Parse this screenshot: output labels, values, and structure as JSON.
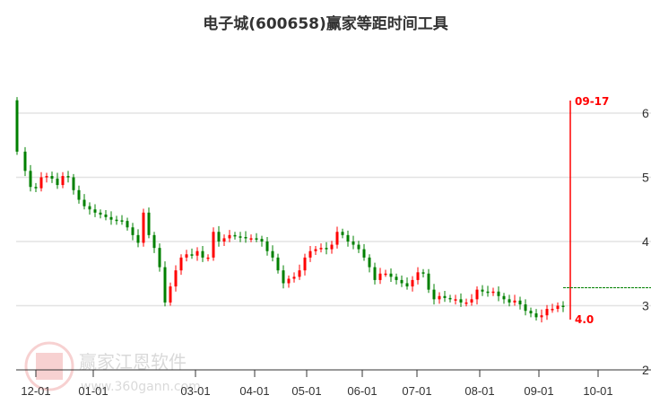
{
  "chart_data": {
    "type": "candlestick",
    "title": "电子城(600658)赢家等距时间工具",
    "y_ticks": [
      2,
      3,
      4,
      5,
      6
    ],
    "ylim": [
      2,
      6.2
    ],
    "x_ticks": [
      "12-01",
      "01-01",
      "03-01",
      "04-01",
      "05-01",
      "06-01",
      "07-01",
      "08-01",
      "09-01",
      "10-01"
    ],
    "grid": true,
    "up_color": "#ff0000",
    "down_color": "#008000",
    "first_open": 6.2,
    "closes": [
      5.4,
      5.1,
      4.85,
      4.83,
      5.0,
      5.02,
      4.98,
      4.88,
      5.02,
      5.0,
      4.8,
      4.65,
      4.55,
      4.5,
      4.45,
      4.42,
      4.38,
      4.34,
      4.33,
      4.32,
      4.22,
      4.1,
      3.98,
      4.45,
      4.1,
      3.9,
      3.6,
      3.05,
      3.3,
      3.55,
      3.75,
      3.8,
      3.78,
      3.85,
      3.75,
      3.75,
      4.15,
      4.0,
      4.05,
      4.1,
      4.08,
      4.07,
      4.05,
      4.05,
      4.04,
      4.0,
      3.85,
      3.75,
      3.55,
      3.35,
      3.42,
      3.45,
      3.55,
      3.75,
      3.85,
      3.88,
      3.9,
      3.88,
      3.95,
      4.15,
      4.1,
      4.0,
      3.95,
      3.88,
      3.75,
      3.6,
      3.4,
      3.5,
      3.5,
      3.45,
      3.4,
      3.35,
      3.3,
      3.4,
      3.52,
      3.5,
      3.25,
      3.1,
      3.15,
      3.12,
      3.1,
      3.1,
      3.05,
      3.05,
      3.1,
      3.25,
      3.22,
      3.2,
      3.22,
      3.15,
      3.1,
      3.05,
      3.08,
      3.02,
      2.92,
      2.88,
      2.82,
      2.85,
      2.95,
      2.95,
      3.0,
      2.98
    ],
    "marker": {
      "date_label": "09-17",
      "value_label": "4.0",
      "color": "#ff0000"
    },
    "reference_line": {
      "value": 3.28,
      "color": "#008000",
      "style": "dashed"
    }
  },
  "watermark": {
    "brand": "赢家江恩软件",
    "url": "www.360gann.com",
    "seal": "江赢恩家"
  }
}
